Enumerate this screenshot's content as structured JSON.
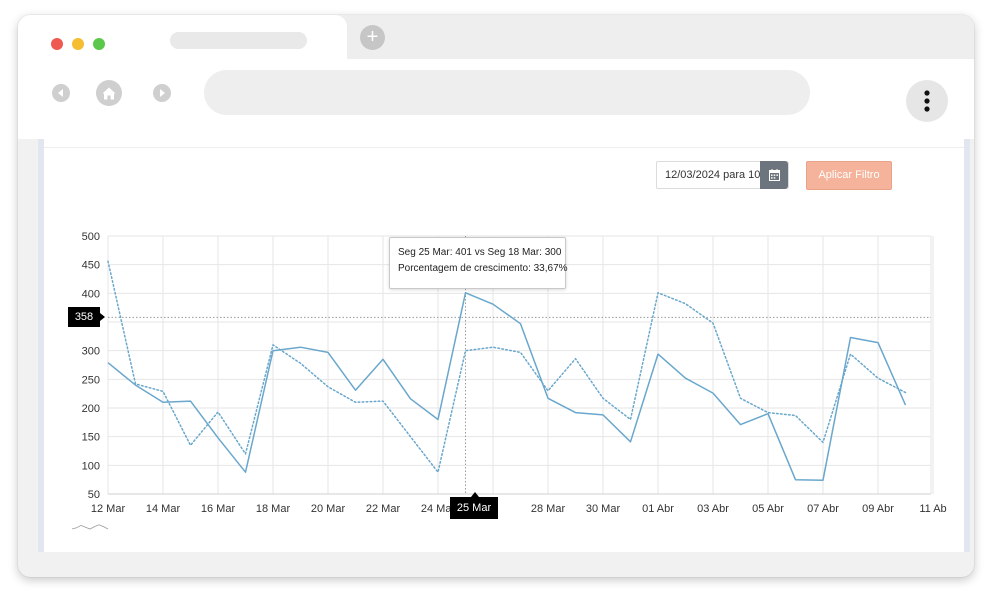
{
  "browser": {
    "controls": [
      "close-dot",
      "minimize-dot",
      "maximize-dot"
    ],
    "new_tab_symbol": "+",
    "icons": {
      "back": "back-icon",
      "home": "home-icon",
      "forward": "forward-icon",
      "menu": "kebab-menu-icon"
    }
  },
  "filter": {
    "date_value": "12/03/2024 para 10",
    "calendar_icon": "calendar-icon",
    "apply_label": "Aplicar Filtro",
    "apply_color": "#f4b39a"
  },
  "tooltip": {
    "line1": "Seg 25 Mar: 401 vs Seg 18 Mar: 300",
    "line2": "Porcentagem de crescimento: 33,67%"
  },
  "crosshair": {
    "y_label": "358",
    "x_label": "25 Mar"
  },
  "chart_data": {
    "type": "line",
    "ylim": [
      50,
      500
    ],
    "yticks": [
      50,
      100,
      150,
      200,
      250,
      300,
      350,
      400,
      450,
      500
    ],
    "ytick_labels": [
      "50",
      "100",
      "150",
      "200",
      "250",
      "300",
      "",
      "400",
      "450",
      "500"
    ],
    "x_tick_labels": [
      "12 Mar",
      "14 Mar",
      "16 Mar",
      "18 Mar",
      "20 Mar",
      "22 Mar",
      "24 Mar",
      "",
      "28 Mar",
      "30 Mar",
      "01 Abr",
      "03 Abr",
      "05 Abr",
      "07 Abr",
      "09 Abr",
      "11 Ab"
    ],
    "x": [
      "12 Mar",
      "13 Mar",
      "14 Mar",
      "15 Mar",
      "16 Mar",
      "17 Mar",
      "18 Mar",
      "19 Mar",
      "20 Mar",
      "21 Mar",
      "22 Mar",
      "23 Mar",
      "24 Mar",
      "25 Mar",
      "26 Mar",
      "27 Mar",
      "28 Mar",
      "29 Mar",
      "30 Mar",
      "31 Mar",
      "01 Abr",
      "02 Abr",
      "03 Abr",
      "04 Abr",
      "05 Abr",
      "06 Abr",
      "07 Abr",
      "08 Abr",
      "09 Abr",
      "10 Abr",
      "11 Abr"
    ],
    "series": [
      {
        "style": "solid",
        "color": "#6aa7cc",
        "values": [
          279,
          240,
          210,
          212,
          148,
          88,
          300,
          306,
          297,
          231,
          285,
          216,
          180,
          401,
          381,
          347,
          217,
          192,
          188,
          141,
          294,
          252,
          226,
          171,
          190,
          75,
          74,
          323,
          314,
          205,
          null
        ]
      },
      {
        "style": "dotted",
        "color": "#6aa7cc",
        "values": [
          456,
          242,
          229,
          135,
          193,
          120,
          310,
          278,
          237,
          210,
          212,
          150,
          88,
          300,
          306,
          297,
          230,
          286,
          217,
          180,
          401,
          382,
          348,
          217,
          192,
          187,
          140,
          294,
          252,
          227,
          null
        ]
      }
    ],
    "reference_line": 358,
    "crosshair_x": "25 Mar",
    "grid": true,
    "legend": "none"
  }
}
